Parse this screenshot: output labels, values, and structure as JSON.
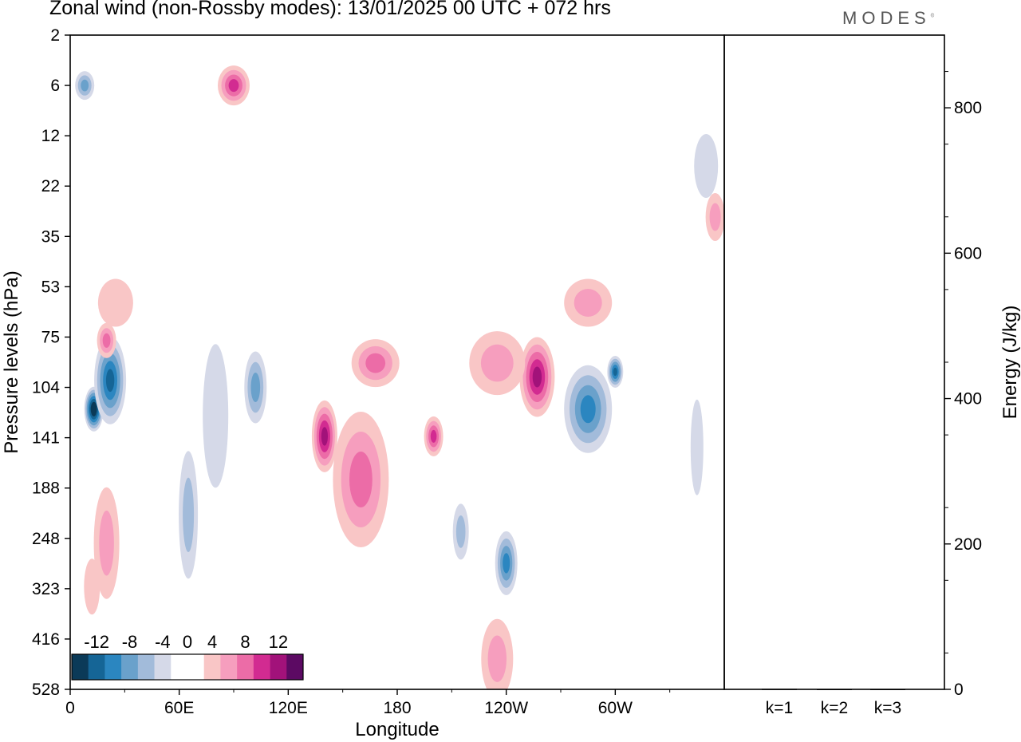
{
  "title": "Zonal wind (non-Rossby modes):  13/01/2025  00 UTC  + 072 hrs",
  "logo": "MODES",
  "chart_data": [
    {
      "type": "heatmap",
      "title": "Zonal wind (non-Rossby modes):  13/01/2025  00 UTC  + 072 hrs",
      "xlabel": "Longitude",
      "ylabel": "Pressure levels (hPa)",
      "x_ticks": [
        "0",
        "60E",
        "120E",
        "180",
        "120W",
        "60W"
      ],
      "x_tick_degrees": [
        0,
        60,
        120,
        180,
        240,
        300
      ],
      "xlim": [
        0,
        360
      ],
      "y_ticks": [
        "2",
        "6",
        "12",
        "22",
        "35",
        "53",
        "75",
        "104",
        "141",
        "188",
        "248",
        "323",
        "416",
        "528"
      ],
      "colorbar": {
        "labels": [
          "-12",
          "-8",
          "-4",
          "0",
          "4",
          "8",
          "12"
        ],
        "levels": [
          -14,
          -12,
          -10,
          -8,
          -6,
          -4,
          -2,
          2,
          4,
          6,
          8,
          10,
          12,
          14
        ],
        "colors": [
          "#0b3a58",
          "#156596",
          "#2b86c0",
          "#6aa1cb",
          "#a2bbda",
          "#d5d9e8",
          "#ffffff",
          "#ffffff",
          "#f9c6c6",
          "#f69ebe",
          "#ec6ca7",
          "#d22b91",
          "#a2127a",
          "#5c0a63"
        ]
      },
      "features": [
        {
          "lon": 13,
          "level": 120,
          "value": -14,
          "rx": 12,
          "ry": 28
        },
        {
          "lon": 22,
          "level": 100,
          "value": -10,
          "rx": 20,
          "ry": 55
        },
        {
          "lon": 20,
          "level": 77,
          "value": 7,
          "rx": 12,
          "ry": 22
        },
        {
          "lon": 25,
          "level": 60,
          "value": 3,
          "rx": 22,
          "ry": 30
        },
        {
          "lon": 20,
          "level": 255,
          "value": 4,
          "rx": 16,
          "ry": 70
        },
        {
          "lon": 12,
          "level": 320,
          "value": 3,
          "rx": 10,
          "ry": 35
        },
        {
          "lon": 90,
          "level": 6,
          "value": 8,
          "rx": 20,
          "ry": 25
        },
        {
          "lon": 8,
          "level": 6,
          "value": -6,
          "rx": 12,
          "ry": 18
        },
        {
          "lon": 65,
          "level": 220,
          "value": -5,
          "rx": 12,
          "ry": 80
        },
        {
          "lon": 102,
          "level": 104,
          "value": -6,
          "rx": 14,
          "ry": 45
        },
        {
          "lon": 80,
          "level": 125,
          "value": -3,
          "rx": 16,
          "ry": 90
        },
        {
          "lon": 140,
          "level": 140,
          "value": 10,
          "rx": 16,
          "ry": 45
        },
        {
          "lon": 160,
          "level": 180,
          "value": 6,
          "rx": 35,
          "ry": 85
        },
        {
          "lon": 168,
          "level": 90,
          "value": 6,
          "rx": 30,
          "ry": 30
        },
        {
          "lon": 200,
          "level": 140,
          "value": 8,
          "rx": 12,
          "ry": 25
        },
        {
          "lon": 257,
          "level": 98,
          "value": 10,
          "rx": 22,
          "ry": 50
        },
        {
          "lon": 235,
          "level": 90,
          "value": 5,
          "rx": 35,
          "ry": 40
        },
        {
          "lon": 285,
          "level": 120,
          "value": -8,
          "rx": 30,
          "ry": 55
        },
        {
          "lon": 300,
          "level": 95,
          "value": -10,
          "rx": 10,
          "ry": 20
        },
        {
          "lon": 240,
          "level": 285,
          "value": -8,
          "rx": 14,
          "ry": 40
        },
        {
          "lon": 215,
          "level": 240,
          "value": -4,
          "rx": 10,
          "ry": 35
        },
        {
          "lon": 285,
          "level": 60,
          "value": 4,
          "rx": 30,
          "ry": 30
        },
        {
          "lon": 350,
          "level": 18,
          "value": -3,
          "rx": 15,
          "ry": 40
        },
        {
          "lon": 355,
          "level": 30,
          "value": 5,
          "rx": 12,
          "ry": 30
        },
        {
          "lon": 235,
          "level": 460,
          "value": 4,
          "rx": 20,
          "ry": 50
        },
        {
          "lon": 345,
          "level": 150,
          "value": -3,
          "rx": 8,
          "ry": 60
        }
      ]
    },
    {
      "type": "bar",
      "categories": [
        "k=1",
        "k=2",
        "k=3"
      ],
      "values": [
        0.8,
        0.6,
        0.6
      ],
      "ylabel": "Energy (J/kg)",
      "y_ticks": [
        "0",
        "200",
        "400",
        "600",
        "800"
      ],
      "ylim": [
        0,
        900
      ]
    }
  ]
}
